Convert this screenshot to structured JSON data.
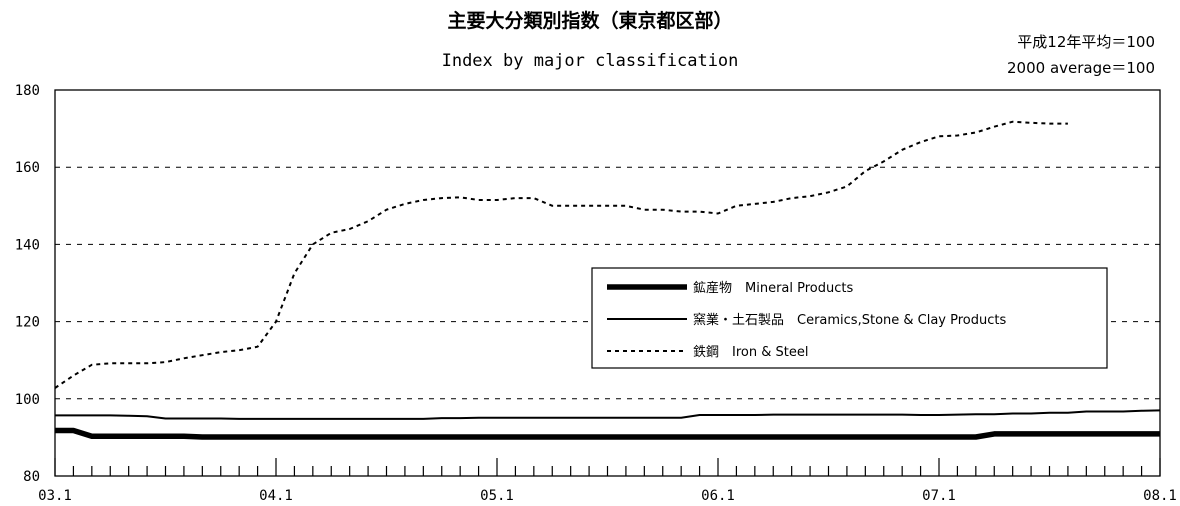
{
  "chart_data": {
    "type": "line",
    "title": "主要大分類別指数（東京都区部）",
    "subtitle": "Index by major classification",
    "base_note_jp": "平成12年平均＝100",
    "base_note_en": "2000 average＝100",
    "xlabel": "",
    "ylabel": "",
    "ylim": [
      80,
      180
    ],
    "yticks": [
      "80",
      "100",
      "120",
      "140",
      "160",
      "180"
    ],
    "xticks": [
      "03.1",
      "04.1",
      "05.1",
      "06.1",
      "07.1",
      "08.1"
    ],
    "grid": true,
    "legend_position": "lower-right",
    "series": [
      {
        "name": "鉱産物　Mineral Products",
        "style": "thick",
        "values": [
          91.8,
          91.8,
          90.3,
          90.3,
          90.3,
          90.3,
          90.3,
          90.3,
          90.1,
          90.1,
          90.1,
          90.1,
          90.1,
          90.1,
          90.1,
          90.1,
          90.1,
          90.1,
          90.1,
          90.1,
          90.1,
          90.1,
          90.1,
          90.1,
          90.1,
          90.1,
          90.1,
          90.1,
          90.1,
          90.1,
          90.1,
          90.1,
          90.1,
          90.1,
          90.1,
          90.1,
          90.1,
          90.1,
          90.1,
          90.1,
          90.1,
          90.1,
          90.1,
          90.1,
          90.1,
          90.1,
          90.1,
          90.1,
          90.1,
          90.1,
          90.1,
          90.9,
          90.9,
          90.9,
          90.9,
          90.9,
          90.9,
          90.9,
          90.9,
          90.9,
          90.9
        ]
      },
      {
        "name": "窯業・土石製品　Ceramics,Stone & Clay Products",
        "style": "solid",
        "values": [
          95.7,
          95.7,
          95.7,
          95.7,
          95.6,
          95.5,
          94.9,
          94.9,
          94.9,
          94.9,
          94.8,
          94.8,
          94.8,
          94.8,
          94.8,
          94.8,
          94.8,
          94.8,
          94.8,
          94.8,
          94.8,
          95.0,
          95.0,
          95.1,
          95.1,
          95.1,
          95.1,
          95.1,
          95.1,
          95.1,
          95.1,
          95.1,
          95.1,
          95.1,
          95.1,
          95.8,
          95.8,
          95.8,
          95.8,
          95.9,
          95.9,
          95.9,
          95.9,
          95.9,
          95.9,
          95.9,
          95.9,
          95.8,
          95.8,
          95.9,
          96.0,
          96.0,
          96.2,
          96.2,
          96.4,
          96.4,
          96.7,
          96.7,
          96.7,
          96.9,
          97.0
        ]
      },
      {
        "name": "鉄鋼　Iron & Steel",
        "style": "dotted",
        "values": [
          102.8,
          106,
          108.8,
          109.2,
          109.2,
          109.2,
          109.5,
          110.5,
          111.3,
          112.1,
          112.6,
          113.5,
          120,
          132.5,
          140,
          143,
          144,
          146,
          149,
          150.5,
          151.5,
          152,
          152.2,
          151.5,
          151.5,
          152,
          152,
          150,
          150,
          150,
          150,
          150,
          149,
          149,
          148.5,
          148.5,
          148,
          150,
          150.5,
          151,
          152,
          152.5,
          153.5,
          155,
          159,
          161.5,
          164.5,
          166.5,
          168,
          168.2,
          169,
          170.5,
          171.8,
          171.5,
          171.3,
          171.3
        ]
      }
    ]
  }
}
